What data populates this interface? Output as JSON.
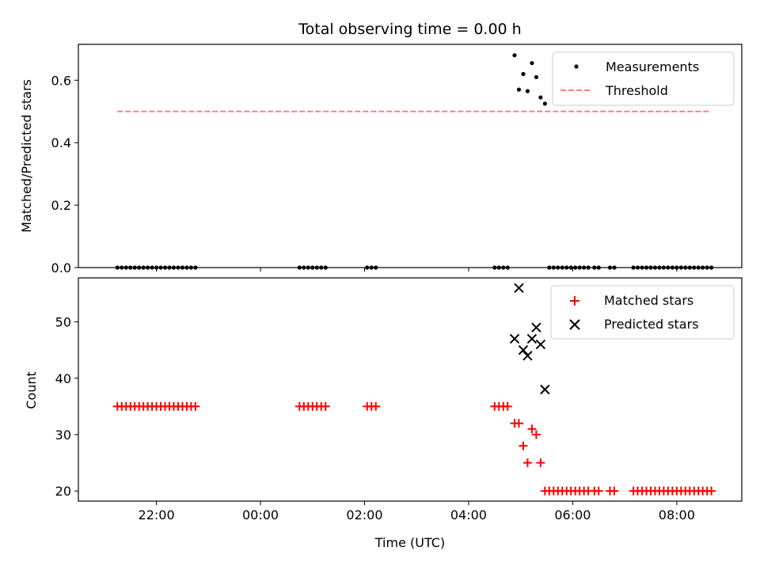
{
  "chart_data": [
    {
      "type": "scatter",
      "title": "Total observing time = 0.00 h",
      "ylabel": "Matched/Predicted stars",
      "xlabel": "",
      "xlim": [
        "2024-01-01T20:30",
        "2024-01-02T09:15"
      ],
      "ylim": [
        0,
        0.715
      ],
      "yticks": [
        0.0,
        0.2,
        0.4,
        0.6
      ],
      "ytick_labels": [
        "0.0",
        "0.2",
        "0.4",
        "0.6"
      ],
      "grid": false,
      "legend_position": "top-right",
      "series": [
        {
          "name": "Measurements",
          "kind": "scatter",
          "marker": "dot",
          "color": "#000000",
          "points": [
            [
              "2024-01-01T21:15",
              0
            ],
            [
              "2024-01-01T21:20",
              0
            ],
            [
              "2024-01-01T21:25",
              0
            ],
            [
              "2024-01-01T21:30",
              0
            ],
            [
              "2024-01-01T21:35",
              0
            ],
            [
              "2024-01-01T21:40",
              0
            ],
            [
              "2024-01-01T21:45",
              0
            ],
            [
              "2024-01-01T21:50",
              0
            ],
            [
              "2024-01-01T21:55",
              0
            ],
            [
              "2024-01-01T22:00",
              0
            ],
            [
              "2024-01-01T22:05",
              0
            ],
            [
              "2024-01-01T22:10",
              0
            ],
            [
              "2024-01-01T22:15",
              0
            ],
            [
              "2024-01-01T22:20",
              0
            ],
            [
              "2024-01-01T22:25",
              0
            ],
            [
              "2024-01-01T22:30",
              0
            ],
            [
              "2024-01-01T22:35",
              0
            ],
            [
              "2024-01-01T22:40",
              0
            ],
            [
              "2024-01-01T22:45",
              0
            ],
            [
              "2024-01-02T00:45",
              0
            ],
            [
              "2024-01-02T00:50",
              0
            ],
            [
              "2024-01-02T00:55",
              0
            ],
            [
              "2024-01-02T01:00",
              0
            ],
            [
              "2024-01-02T01:05",
              0
            ],
            [
              "2024-01-02T01:10",
              0
            ],
            [
              "2024-01-02T01:15",
              0
            ],
            [
              "2024-01-02T02:03",
              0
            ],
            [
              "2024-01-02T02:08",
              0
            ],
            [
              "2024-01-02T02:13",
              0
            ],
            [
              "2024-01-02T04:30",
              0
            ],
            [
              "2024-01-02T04:35",
              0
            ],
            [
              "2024-01-02T04:40",
              0
            ],
            [
              "2024-01-02T04:45",
              0
            ],
            [
              "2024-01-02T04:53",
              0.68
            ],
            [
              "2024-01-02T04:58",
              0.57
            ],
            [
              "2024-01-02T05:03",
              0.62
            ],
            [
              "2024-01-02T05:08",
              0.565
            ],
            [
              "2024-01-02T05:13",
              0.655
            ],
            [
              "2024-01-02T05:18",
              0.61
            ],
            [
              "2024-01-02T05:23",
              0.545
            ],
            [
              "2024-01-02T05:28",
              0.525
            ],
            [
              "2024-01-02T05:33",
              0
            ],
            [
              "2024-01-02T05:38",
              0
            ],
            [
              "2024-01-02T05:43",
              0
            ],
            [
              "2024-01-02T05:48",
              0
            ],
            [
              "2024-01-02T05:53",
              0
            ],
            [
              "2024-01-02T05:58",
              0
            ],
            [
              "2024-01-02T06:03",
              0
            ],
            [
              "2024-01-02T06:08",
              0
            ],
            [
              "2024-01-02T06:13",
              0
            ],
            [
              "2024-01-02T06:18",
              0
            ],
            [
              "2024-01-02T06:25",
              0
            ],
            [
              "2024-01-02T06:30",
              0
            ],
            [
              "2024-01-02T06:43",
              0
            ],
            [
              "2024-01-02T06:48",
              0
            ],
            [
              "2024-01-02T07:10",
              0
            ],
            [
              "2024-01-02T07:15",
              0
            ],
            [
              "2024-01-02T07:20",
              0
            ],
            [
              "2024-01-02T07:25",
              0
            ],
            [
              "2024-01-02T07:30",
              0
            ],
            [
              "2024-01-02T07:35",
              0
            ],
            [
              "2024-01-02T07:40",
              0
            ],
            [
              "2024-01-02T07:45",
              0
            ],
            [
              "2024-01-02T07:50",
              0
            ],
            [
              "2024-01-02T07:55",
              0
            ],
            [
              "2024-01-02T08:00",
              0
            ],
            [
              "2024-01-02T08:05",
              0
            ],
            [
              "2024-01-02T08:10",
              0
            ],
            [
              "2024-01-02T08:15",
              0
            ],
            [
              "2024-01-02T08:20",
              0
            ],
            [
              "2024-01-02T08:25",
              0
            ],
            [
              "2024-01-02T08:30",
              0
            ],
            [
              "2024-01-02T08:35",
              0
            ],
            [
              "2024-01-02T08:40",
              0
            ]
          ]
        },
        {
          "name": "Threshold",
          "kind": "line",
          "style": "dashed",
          "color": "#ff7f7f",
          "points": [
            [
              "2024-01-01T21:15",
              0.5
            ],
            [
              "2024-01-02T08:40",
              0.5
            ]
          ]
        }
      ]
    },
    {
      "type": "scatter",
      "title": "",
      "ylabel": "Count",
      "xlabel": "Time (UTC)",
      "xlim": [
        "2024-01-01T20:30",
        "2024-01-02T09:15"
      ],
      "ylim": [
        18.2,
        57.8
      ],
      "yticks": [
        20,
        30,
        40,
        50
      ],
      "ytick_labels": [
        "20",
        "30",
        "40",
        "50"
      ],
      "xticks": [
        "2024-01-01T22:00",
        "2024-01-02T00:00",
        "2024-01-02T02:00",
        "2024-01-02T04:00",
        "2024-01-02T06:00",
        "2024-01-02T08:00"
      ],
      "xtick_labels": [
        "22:00",
        "00:00",
        "02:00",
        "04:00",
        "06:00",
        "08:00"
      ],
      "grid": false,
      "legend_position": "top-right",
      "series": [
        {
          "name": "Matched stars",
          "kind": "scatter",
          "marker": "plus",
          "color": "#ff0000",
          "points": [
            [
              "2024-01-01T21:15",
              35
            ],
            [
              "2024-01-01T21:20",
              35
            ],
            [
              "2024-01-01T21:25",
              35
            ],
            [
              "2024-01-01T21:30",
              35
            ],
            [
              "2024-01-01T21:35",
              35
            ],
            [
              "2024-01-01T21:40",
              35
            ],
            [
              "2024-01-01T21:45",
              35
            ],
            [
              "2024-01-01T21:50",
              35
            ],
            [
              "2024-01-01T21:55",
              35
            ],
            [
              "2024-01-01T22:00",
              35
            ],
            [
              "2024-01-01T22:05",
              35
            ],
            [
              "2024-01-01T22:10",
              35
            ],
            [
              "2024-01-01T22:15",
              35
            ],
            [
              "2024-01-01T22:20",
              35
            ],
            [
              "2024-01-01T22:25",
              35
            ],
            [
              "2024-01-01T22:30",
              35
            ],
            [
              "2024-01-01T22:35",
              35
            ],
            [
              "2024-01-01T22:40",
              35
            ],
            [
              "2024-01-01T22:45",
              35
            ],
            [
              "2024-01-02T00:45",
              35
            ],
            [
              "2024-01-02T00:50",
              35
            ],
            [
              "2024-01-02T00:55",
              35
            ],
            [
              "2024-01-02T01:00",
              35
            ],
            [
              "2024-01-02T01:05",
              35
            ],
            [
              "2024-01-02T01:10",
              35
            ],
            [
              "2024-01-02T01:15",
              35
            ],
            [
              "2024-01-02T02:03",
              35
            ],
            [
              "2024-01-02T02:08",
              35
            ],
            [
              "2024-01-02T02:13",
              35
            ],
            [
              "2024-01-02T04:30",
              35
            ],
            [
              "2024-01-02T04:35",
              35
            ],
            [
              "2024-01-02T04:40",
              35
            ],
            [
              "2024-01-02T04:45",
              35
            ],
            [
              "2024-01-02T04:53",
              32
            ],
            [
              "2024-01-02T04:58",
              32
            ],
            [
              "2024-01-02T05:03",
              28
            ],
            [
              "2024-01-02T05:08",
              25
            ],
            [
              "2024-01-02T05:13",
              31
            ],
            [
              "2024-01-02T05:18",
              30
            ],
            [
              "2024-01-02T05:23",
              25
            ],
            [
              "2024-01-02T05:28",
              20
            ],
            [
              "2024-01-02T05:33",
              20
            ],
            [
              "2024-01-02T05:38",
              20
            ],
            [
              "2024-01-02T05:43",
              20
            ],
            [
              "2024-01-02T05:48",
              20
            ],
            [
              "2024-01-02T05:53",
              20
            ],
            [
              "2024-01-02T05:58",
              20
            ],
            [
              "2024-01-02T06:03",
              20
            ],
            [
              "2024-01-02T06:08",
              20
            ],
            [
              "2024-01-02T06:13",
              20
            ],
            [
              "2024-01-02T06:18",
              20
            ],
            [
              "2024-01-02T06:25",
              20
            ],
            [
              "2024-01-02T06:30",
              20
            ],
            [
              "2024-01-02T06:43",
              20
            ],
            [
              "2024-01-02T06:48",
              20
            ],
            [
              "2024-01-02T07:10",
              20
            ],
            [
              "2024-01-02T07:15",
              20
            ],
            [
              "2024-01-02T07:20",
              20
            ],
            [
              "2024-01-02T07:25",
              20
            ],
            [
              "2024-01-02T07:30",
              20
            ],
            [
              "2024-01-02T07:35",
              20
            ],
            [
              "2024-01-02T07:40",
              20
            ],
            [
              "2024-01-02T07:45",
              20
            ],
            [
              "2024-01-02T07:50",
              20
            ],
            [
              "2024-01-02T07:55",
              20
            ],
            [
              "2024-01-02T08:00",
              20
            ],
            [
              "2024-01-02T08:05",
              20
            ],
            [
              "2024-01-02T08:10",
              20
            ],
            [
              "2024-01-02T08:15",
              20
            ],
            [
              "2024-01-02T08:20",
              20
            ],
            [
              "2024-01-02T08:25",
              20
            ],
            [
              "2024-01-02T08:30",
              20
            ],
            [
              "2024-01-02T08:35",
              20
            ],
            [
              "2024-01-02T08:40",
              20
            ]
          ]
        },
        {
          "name": "Predicted stars",
          "kind": "scatter",
          "marker": "x",
          "color": "#000000",
          "points": [
            [
              "2024-01-02T04:53",
              47
            ],
            [
              "2024-01-02T04:58",
              56
            ],
            [
              "2024-01-02T05:03",
              45
            ],
            [
              "2024-01-02T05:08",
              44
            ],
            [
              "2024-01-02T05:13",
              47
            ],
            [
              "2024-01-02T05:18",
              49
            ],
            [
              "2024-01-02T05:23",
              46
            ],
            [
              "2024-01-02T05:28",
              38
            ]
          ]
        }
      ]
    }
  ]
}
